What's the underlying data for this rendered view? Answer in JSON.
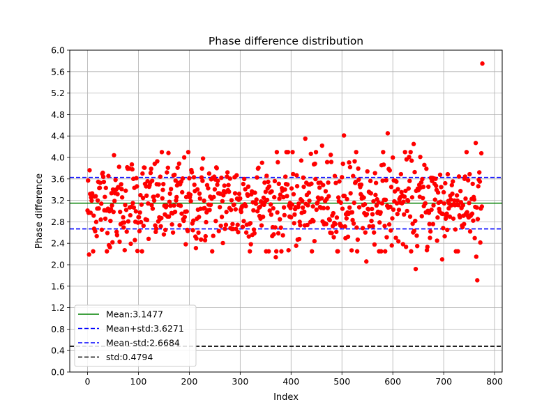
{
  "chart_data": {
    "type": "scatter",
    "title": "Phase difference distribution",
    "xlabel": "Index",
    "ylabel": "Phase difference",
    "xlim": [
      -35,
      815
    ],
    "ylim": [
      0.0,
      6.0
    ],
    "xticks": [
      "0",
      "100",
      "200",
      "300",
      "400",
      "500",
      "600",
      "700",
      "800"
    ],
    "yticks": [
      "0.0",
      "0.4",
      "0.8",
      "1.2",
      "1.6",
      "2.0",
      "2.4",
      "2.8",
      "3.2",
      "3.6",
      "4.0",
      "4.4",
      "4.8",
      "5.2",
      "5.6",
      "6.0"
    ],
    "grid": true,
    "legend_position": "lower-left",
    "marker_color": "#ff0000",
    "n_points": 777,
    "mean": 3.1477,
    "std": 0.4794,
    "outliers": [
      {
        "x": 776,
        "y": 5.75
      },
      {
        "x": 504,
        "y": 4.41
      },
      {
        "x": 590,
        "y": 4.45
      },
      {
        "x": 428,
        "y": 4.35
      },
      {
        "x": 763,
        "y": 4.27
      },
      {
        "x": 641,
        "y": 4.25
      },
      {
        "x": 461,
        "y": 4.22
      },
      {
        "x": 645,
        "y": 1.92
      },
      {
        "x": 548,
        "y": 2.06
      },
      {
        "x": 370,
        "y": 2.14
      },
      {
        "x": 697,
        "y": 2.1
      },
      {
        "x": 766,
        "y": 1.71
      },
      {
        "x": 764,
        "y": 2.15
      },
      {
        "x": 3,
        "y": 2.19
      }
    ],
    "reference_lines": [
      {
        "label": "Mean:3.1477",
        "y": 3.1477,
        "color": "#008000",
        "style": "solid"
      },
      {
        "label": "Mean+std:3.6271",
        "y": 3.6271,
        "color": "#0000ff",
        "style": "dashed"
      },
      {
        "label": "Mean-std:2.6684",
        "y": 2.6684,
        "color": "#0000ff",
        "style": "dashed"
      },
      {
        "label": "std:0.4794",
        "y": 0.4794,
        "color": "#000000",
        "style": "dashed"
      }
    ]
  }
}
